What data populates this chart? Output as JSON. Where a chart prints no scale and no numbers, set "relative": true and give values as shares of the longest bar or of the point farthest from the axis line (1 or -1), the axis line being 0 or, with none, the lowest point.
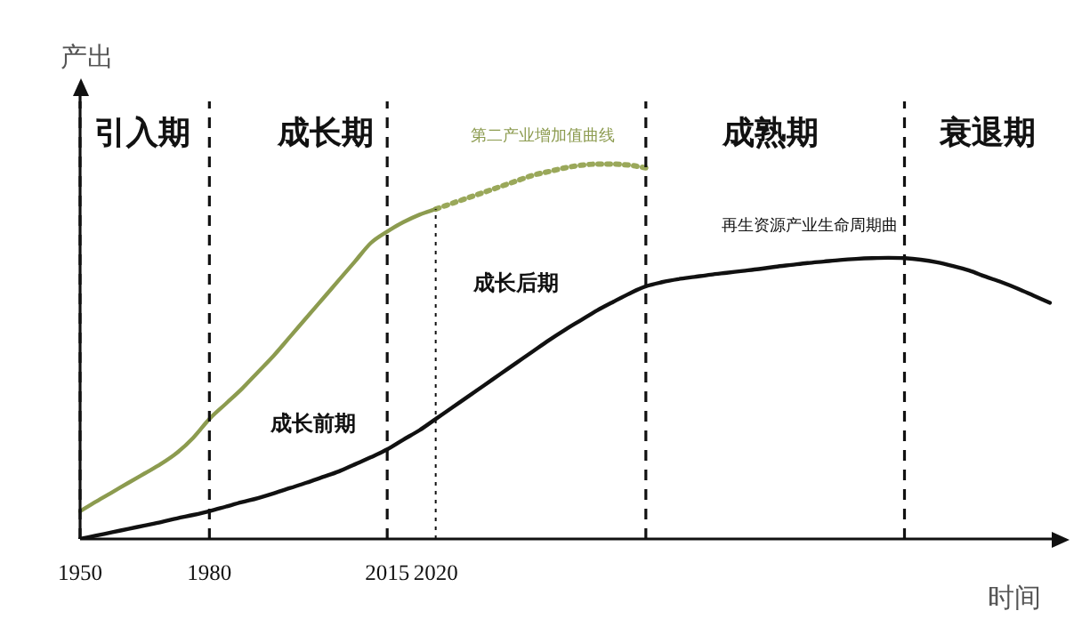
{
  "chart_data": {
    "type": "line",
    "relative": true,
    "xlabel": "时间",
    "ylabel": "产出",
    "categories": [
      "1950",
      null,
      null,
      null,
      null,
      null,
      null,
      null,
      "1980",
      null,
      null,
      null,
      null,
      null,
      null,
      null,
      null,
      null,
      null,
      "2015",
      null,
      null,
      "2020",
      null,
      null,
      null,
      null,
      null,
      null,
      null,
      null,
      null,
      null,
      null,
      null,
      null,
      null,
      null,
      null,
      null,
      null,
      null,
      null,
      null,
      null,
      null,
      null,
      null,
      null,
      null,
      null,
      null,
      null,
      null,
      null,
      null,
      null,
      null,
      null,
      null,
      null
    ],
    "series": [
      {
        "name": "第二产业增加值曲线",
        "color": "#8c9b4f",
        "line_style": "solid",
        "values": [
          0.074,
          0.1,
          0.125,
          0.15,
          0.175,
          0.2,
          0.23,
          0.27,
          0.32,
          0.36,
          0.4,
          0.445,
          0.49,
          0.54,
          0.59,
          0.64,
          0.69,
          0.74,
          0.79,
          0.82,
          0.845,
          0.865,
          0.88,
          null,
          null,
          null,
          null,
          null,
          null,
          null,
          null,
          null,
          null,
          null,
          null,
          null,
          null,
          null,
          null,
          null,
          null,
          null,
          null,
          null,
          null,
          null,
          null,
          null,
          null,
          null,
          null,
          null,
          null,
          null,
          null,
          null,
          null,
          null,
          null,
          null,
          null
        ]
      },
      {
        "color": "#9aa85a",
        "line_style": "dotted",
        "values": [
          null,
          null,
          null,
          null,
          null,
          null,
          null,
          null,
          null,
          null,
          null,
          null,
          null,
          null,
          null,
          null,
          null,
          null,
          null,
          null,
          null,
          null,
          0.88,
          0.895,
          0.91,
          0.925,
          0.94,
          0.955,
          0.97,
          0.98,
          0.99,
          0.997,
          1.0,
          1.0,
          0.997,
          0.99,
          null,
          null,
          null,
          null,
          null,
          null,
          null,
          null,
          null,
          null,
          null,
          null,
          null,
          null,
          null,
          null,
          null,
          null,
          null,
          null,
          null,
          null,
          null,
          null,
          null
        ]
      },
      {
        "name": "再生资源产业生命周期曲",
        "color": "#111111",
        "line_style": "solid",
        "values": [
          0,
          0.009,
          0.018,
          0.027,
          0.036,
          0.045,
          0.055,
          0.064,
          0.074,
          0.086,
          0.098,
          0.109,
          0.122,
          0.136,
          0.15,
          0.165,
          0.18,
          0.199,
          0.218,
          0.239,
          0.265,
          0.29,
          0.32,
          0.35,
          0.38,
          0.41,
          0.44,
          0.47,
          0.5,
          0.53,
          0.558,
          0.584,
          0.61,
          0.633,
          0.655,
          0.674,
          0.685,
          0.693,
          0.699,
          0.705,
          0.71,
          0.715,
          0.72,
          0.726,
          0.731,
          0.736,
          0.74,
          0.744,
          0.747,
          0.749,
          0.75,
          0.749,
          0.745,
          0.738,
          0.728,
          0.716,
          0.7,
          0.685,
          0.668,
          0.649,
          0.63
        ]
      }
    ],
    "ref_lines": [
      {
        "axis": "x",
        "value": "2020",
        "line_style": "dotted"
      }
    ],
    "annotations": [
      "引入期",
      "成长期",
      "成熟期",
      "衰退期",
      "成长前期",
      "成长后期"
    ],
    "grid": "x",
    "legend": false,
    "marker": "none"
  }
}
